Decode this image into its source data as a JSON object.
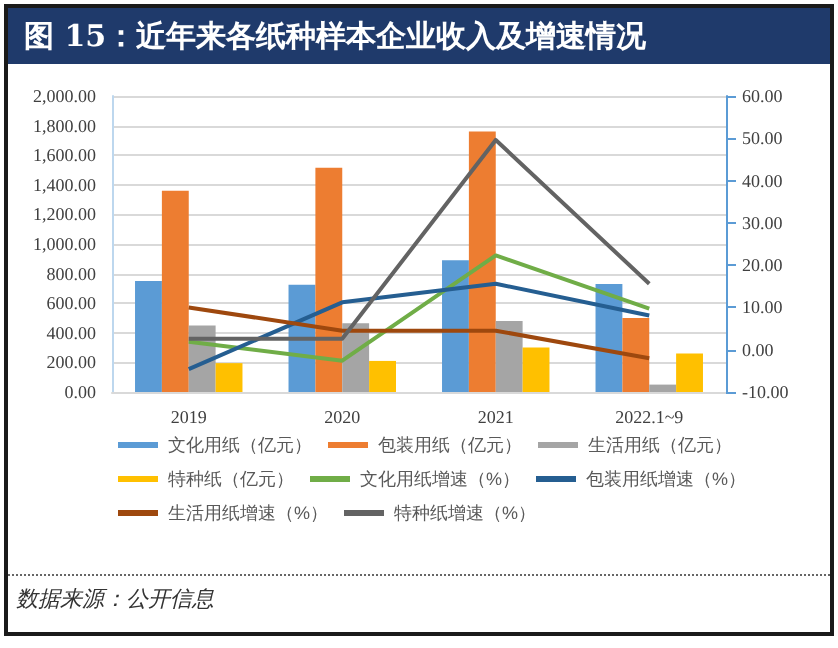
{
  "chart_data": {
    "type": "bar",
    "title": "图 15：近年来各纸种样本企业收入及增速情况",
    "categories": [
      "2019",
      "2020",
      "2021",
      "2022.1~9"
    ],
    "series": [
      {
        "name": "文化用纸（亿元）",
        "color": "#5b9bd5",
        "values": [
          750,
          725,
          890,
          730
        ]
      },
      {
        "name": "包装用纸（亿元）",
        "color": "#ed7d31",
        "values": [
          1360,
          1515,
          1760,
          500
        ]
      },
      {
        "name": "生活用纸（亿元）",
        "color": "#a5a5a5",
        "values": [
          450,
          465,
          480,
          50
        ]
      },
      {
        "name": "特种纸（亿元）",
        "color": "#ffc000",
        "values": [
          195,
          210,
          300,
          260
        ]
      },
      {
        "name": "文化用纸增速（%）",
        "type": "line",
        "axis": "y2",
        "color": "#70ad47",
        "values": [
          1.9,
          -2.6,
          22.3,
          9.7
        ]
      },
      {
        "name": "包装用纸增速（%）",
        "type": "line",
        "axis": "y2",
        "color": "#255e91",
        "values": [
          -4.6,
          11.2,
          15.6,
          8.1
        ]
      },
      {
        "name": "生活用纸增速（%）",
        "type": "line",
        "axis": "y2",
        "color": "#9e480e",
        "values": [
          10,
          4.5,
          4.5,
          -2
        ]
      },
      {
        "name": "特种纸增速（%）",
        "type": "line",
        "axis": "y2",
        "color": "#636363",
        "values": [
          2.6,
          2.6,
          49.6,
          15.6
        ]
      }
    ],
    "ylim": [
      0,
      2000
    ],
    "yticks": [
      {
        "value": 0,
        "label": "0.00"
      },
      {
        "value": 200,
        "label": "200.00"
      },
      {
        "value": 400,
        "label": "400.00"
      },
      {
        "value": 600,
        "label": "600.00"
      },
      {
        "value": 800,
        "label": "800.00"
      },
      {
        "value": 1000,
        "label": "1,000.00"
      },
      {
        "value": 1200,
        "label": "1,200.00"
      },
      {
        "value": 1400,
        "label": "1,400.00"
      },
      {
        "value": 1600,
        "label": "1,600.00"
      },
      {
        "value": 1800,
        "label": "1,800.00"
      },
      {
        "value": 2000,
        "label": "2,000.00"
      }
    ],
    "y2lim": [
      -10,
      60
    ],
    "y2ticks": [
      {
        "value": -10,
        "label": "-10.00"
      },
      {
        "value": 0,
        "label": "0.00"
      },
      {
        "value": 10,
        "label": "10.00"
      },
      {
        "value": 20,
        "label": "20.00"
      },
      {
        "value": 30,
        "label": "30.00"
      },
      {
        "value": 40,
        "label": "40.00"
      },
      {
        "value": 50,
        "label": "50.00"
      },
      {
        "value": 60,
        "label": "60.00"
      }
    ],
    "grid": "y",
    "legend": "bottom",
    "marker": "none",
    "line_style": "solid",
    "annotations": [
      "数据来源：公开信息"
    ]
  }
}
